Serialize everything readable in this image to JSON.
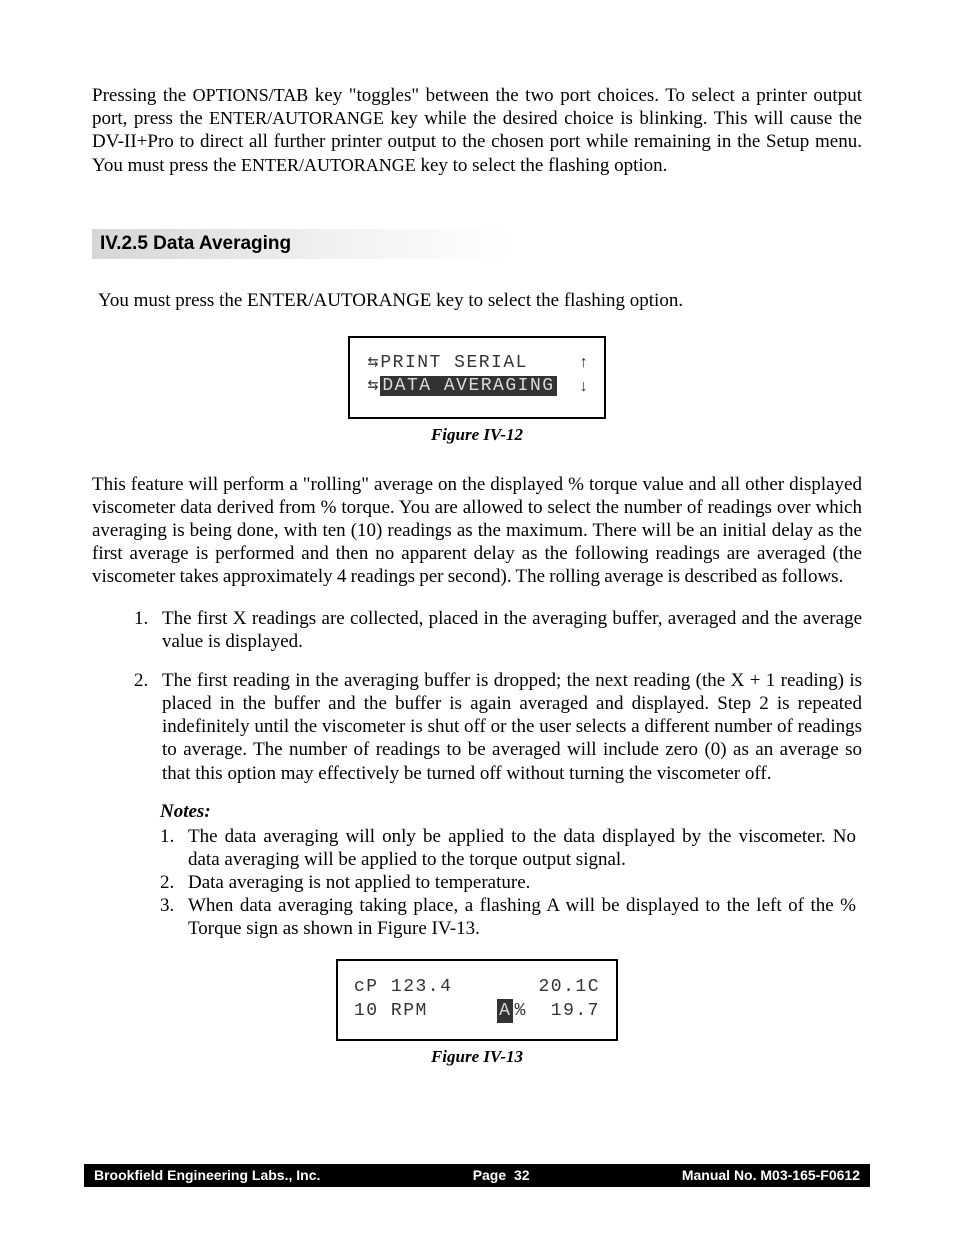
{
  "para1_pre": "Pressing the ",
  "key_options": "OPTIONS/TAB",
  "para1_mid1": " key \"toggles\" between the two port choices.  To select a printer output port, press the ",
  "key_enter": "ENTER/AUTORANGE",
  "para1_mid2": " key while the desired choice is blinking.    This will cause the DV-II+Pro to direct all further printer output to the chosen port while remaining in the Setup menu.   You must press the ",
  "para1_end": " key to select the flashing option.",
  "section_title": "IV.2.5  Data Averaging",
  "para2_pre": "You must press the ",
  "para2_end": " key to select the flashing option.",
  "lcd1": {
    "row1_left": "PRINT SERIAL",
    "row1_arrow": "↑",
    "row2_left": "DATA AVERAGING",
    "row2_arrow": "↓"
  },
  "fig12": "Figure IV-12",
  "para3": "This feature will perform a \"rolling\" average on the displayed % torque value and all other displayed viscometer data derived from % torque.   You are allowed to select the number of readings over which averaging is being done, with ten (10) readings as the maximum.  There will be an initial delay as the first average is performed and then no apparent delay as the following readings are averaged (the viscometer takes approximately 4 readings per second).  The rolling average is described as follows.",
  "list": {
    "item1": "The first X readings are collected, placed in the averaging buffer, averaged and the average value is displayed.",
    "item2": "The first reading in the averaging buffer is dropped; the next reading (the X + 1 reading) is placed in the buffer and the buffer is again averaged and displayed.  Step 2 is repeated indefinitely until the viscometer is shut off or the user selects a different number of readings to average.   The number of readings to be averaged will include zero (0) as an average so that this option may effectively be turned off without turning the viscometer off."
  },
  "notes_title": "Notes:",
  "notes": {
    "n1": "The data averaging will only be applied to the data displayed by the viscometer.   No data averaging will be applied to the torque output signal.",
    "n2": "Data averaging is not applied to temperature.",
    "n3": "When data averaging taking place, a flashing A will be displayed to the left of the % Torque sign as shown in Figure IV-13."
  },
  "lcd2": {
    "r1_left": "cP 123.4",
    "r1_right": "20.1C",
    "r2_left": "10 RPM",
    "r2_mid_a": "A",
    "r2_mid_pct": "%",
    "r2_right": "19.7"
  },
  "fig13": "Figure IV-13",
  "footer": {
    "left": "Brookfield Engineering Labs., Inc.",
    "center_label": "Page",
    "center_num": "32",
    "right": "Manual No. M03-165-F0612"
  }
}
